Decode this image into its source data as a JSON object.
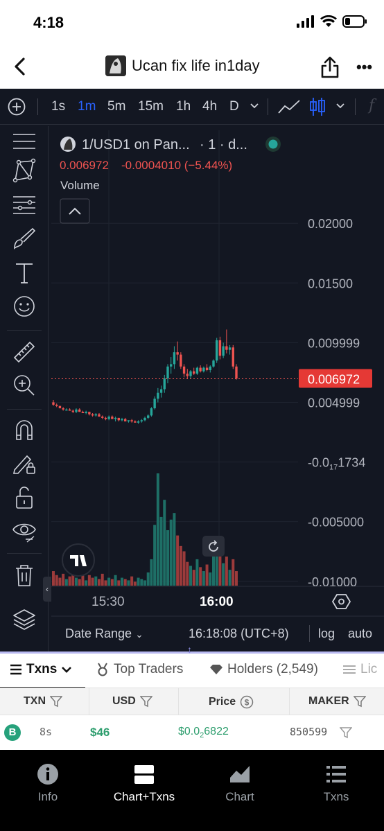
{
  "status": {
    "time": "4:18"
  },
  "nav": {
    "title": "Ucan fix life in1day"
  },
  "timeframes": [
    "1s",
    "1m",
    "5m",
    "15m",
    "1h",
    "4h",
    "D"
  ],
  "active_timeframe": "1m",
  "legend": {
    "symbol": "1/USD1 on Pan...",
    "interval": "· 1 · d...",
    "price": "0.006972",
    "change": "-0.0004010 (−5.44%)",
    "volume_label": "Volume"
  },
  "price_axis": {
    "labels": [
      "0.02000",
      "0.01500",
      "0.009999",
      "0.004999",
      "-0.0",
      "-0.005000",
      "-0.01000"
    ],
    "label5_sub": "17",
    "label5_tail": "1734",
    "current": "0.006972"
  },
  "time_axis": [
    "15:30",
    "16:00"
  ],
  "chart_data": {
    "type": "candlestick",
    "ylim": [
      -0.011,
      0.0228
    ],
    "current_price": 0.006972,
    "candles": [
      [
        0.005,
        0.0052,
        0.0047,
        0.0048,
        11
      ],
      [
        0.0048,
        0.0049,
        0.0046,
        0.0047,
        8
      ],
      [
        0.0047,
        0.0047,
        0.0045,
        0.0045,
        6
      ],
      [
        0.0045,
        0.0046,
        0.0043,
        0.0044,
        9
      ],
      [
        0.0044,
        0.0045,
        0.0043,
        0.0044,
        5
      ],
      [
        0.0044,
        0.0045,
        0.0043,
        0.0043,
        7
      ],
      [
        0.0043,
        0.0044,
        0.0041,
        0.0042,
        10
      ],
      [
        0.0042,
        0.0045,
        0.0041,
        0.0044,
        6
      ],
      [
        0.0044,
        0.0045,
        0.0042,
        0.0042,
        5
      ],
      [
        0.0042,
        0.0043,
        0.0041,
        0.0041,
        9
      ],
      [
        0.0041,
        0.0043,
        0.004,
        0.0042,
        4
      ],
      [
        0.0042,
        0.0042,
        0.0039,
        0.004,
        8
      ],
      [
        0.004,
        0.0041,
        0.0038,
        0.0039,
        6
      ],
      [
        0.0039,
        0.0041,
        0.0038,
        0.004,
        7
      ],
      [
        0.004,
        0.0041,
        0.0038,
        0.0038,
        5
      ],
      [
        0.0038,
        0.0039,
        0.0036,
        0.0037,
        9
      ],
      [
        0.0037,
        0.0038,
        0.0035,
        0.0036,
        4
      ],
      [
        0.0036,
        0.0039,
        0.0035,
        0.0038,
        6
      ],
      [
        0.0038,
        0.0039,
        0.0036,
        0.0036,
        5
      ],
      [
        0.0036,
        0.0038,
        0.0034,
        0.0037,
        8
      ],
      [
        0.0037,
        0.0037,
        0.0034,
        0.0035,
        4
      ],
      [
        0.0035,
        0.0037,
        0.0034,
        0.0036,
        6
      ],
      [
        0.0036,
        0.0037,
        0.0034,
        0.0034,
        5
      ],
      [
        0.0034,
        0.0035,
        0.0033,
        0.0035,
        4
      ],
      [
        0.0035,
        0.0036,
        0.0033,
        0.0034,
        7
      ],
      [
        0.0034,
        0.0035,
        0.0033,
        0.0033,
        3
      ],
      [
        0.0033,
        0.0035,
        0.0032,
        0.0034,
        6
      ],
      [
        0.0034,
        0.0036,
        0.0033,
        0.0035,
        5
      ],
      [
        0.0035,
        0.0038,
        0.0034,
        0.0037,
        4
      ],
      [
        0.0037,
        0.004,
        0.0036,
        0.0039,
        10
      ],
      [
        0.0039,
        0.0046,
        0.0038,
        0.0045,
        20
      ],
      [
        0.0045,
        0.0055,
        0.0044,
        0.0053,
        46
      ],
      [
        0.0053,
        0.0062,
        0.005,
        0.0058,
        85
      ],
      [
        0.0058,
        0.0064,
        0.0054,
        0.0061,
        52
      ],
      [
        0.0061,
        0.0073,
        0.0058,
        0.007,
        65
      ],
      [
        0.007,
        0.0082,
        0.0066,
        0.008,
        42
      ],
      [
        0.008,
        0.0088,
        0.0074,
        0.0082,
        50
      ],
      [
        0.0082,
        0.0097,
        0.0078,
        0.0092,
        55
      ],
      [
        0.0092,
        0.0101,
        0.0085,
        0.009,
        38
      ],
      [
        0.009,
        0.0092,
        0.0078,
        0.008,
        30
      ],
      [
        0.008,
        0.0082,
        0.0071,
        0.0074,
        26
      ],
      [
        0.0074,
        0.0078,
        0.007,
        0.0072,
        18
      ],
      [
        0.0072,
        0.0077,
        0.007,
        0.0076,
        15
      ],
      [
        0.0076,
        0.0079,
        0.0073,
        0.0074,
        12
      ],
      [
        0.0074,
        0.008,
        0.0073,
        0.0079,
        20
      ],
      [
        0.0079,
        0.0081,
        0.0075,
        0.0076,
        14
      ],
      [
        0.0076,
        0.008,
        0.0075,
        0.0079,
        11
      ],
      [
        0.0079,
        0.0082,
        0.0076,
        0.0077,
        16
      ],
      [
        0.0077,
        0.0081,
        0.0075,
        0.008,
        10
      ],
      [
        0.008,
        0.0086,
        0.0079,
        0.0085,
        25
      ],
      [
        0.0085,
        0.0104,
        0.0083,
        0.0102,
        36
      ],
      [
        0.0102,
        0.0105,
        0.0086,
        0.0089,
        30
      ],
      [
        0.0089,
        0.01,
        0.0087,
        0.0097,
        17
      ],
      [
        0.0097,
        0.0111,
        0.0091,
        0.0094,
        22
      ],
      [
        0.0094,
        0.0098,
        0.009,
        0.0096,
        12
      ],
      [
        0.0096,
        0.0098,
        0.0078,
        0.008,
        20
      ],
      [
        0.008,
        0.0082,
        0.0069,
        0.007,
        11
      ]
    ]
  },
  "chart_bottom": {
    "date_range": "Date Range",
    "clock": "16:18:08 (UTC+8)",
    "log": "log",
    "auto": "auto"
  },
  "tabs": {
    "txns": "Txns",
    "top_traders": "Top Traders",
    "holders": "Holders (2,549)",
    "liquidity": "Lic"
  },
  "table": {
    "headers": [
      "TXN",
      "USD",
      "Price",
      "MAKER"
    ],
    "row": {
      "badge": "B",
      "age": "8s",
      "usd": "$46",
      "price_head": "$0.0",
      "price_sub": "2",
      "price_tail": "6822",
      "maker": "850599"
    }
  },
  "bottom_nav": [
    "Info",
    "Chart+Txns",
    "Chart",
    "Txns"
  ],
  "colors": {
    "up": "#26a69a",
    "down": "#ef5350",
    "chart_bg": "#131722",
    "buy_badge": "#26a17b",
    "price_tag": "#e53935"
  }
}
